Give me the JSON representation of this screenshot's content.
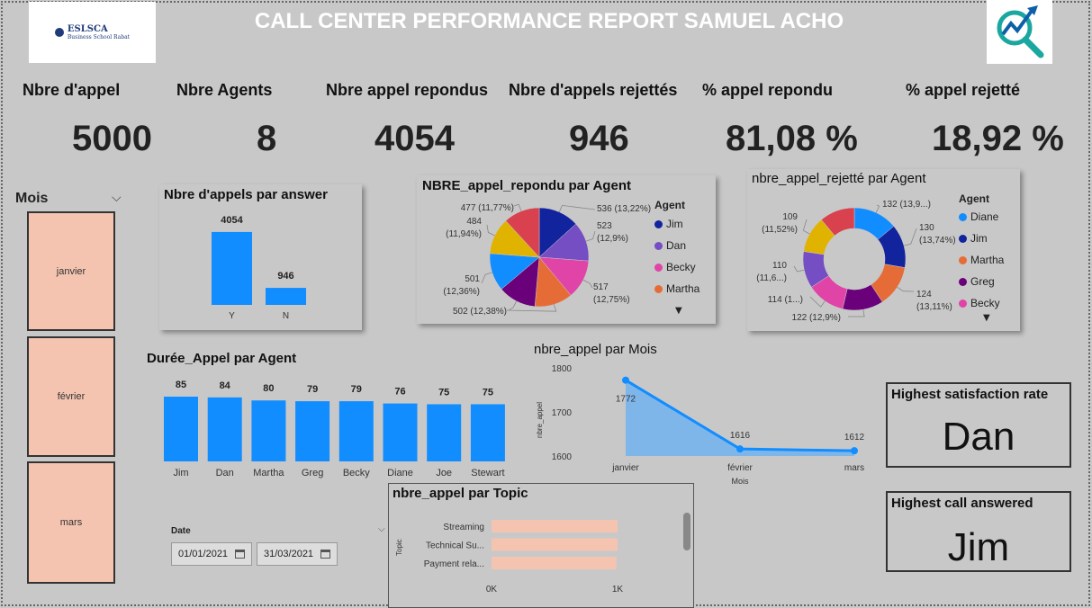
{
  "header": {
    "title": "CALL CENTER PERFORMANCE REPORT SAMUEL ACHO",
    "logo_left": {
      "name": "ESLSCA",
      "sub": "Business School Rabat"
    },
    "logo_right_icon": "analytics-magnifier-icon"
  },
  "kpis": [
    {
      "label": "Nbre d'appel",
      "value": "5000"
    },
    {
      "label": "Nbre Agents",
      "value": "8"
    },
    {
      "label": "Nbre appel repondus",
      "value": "4054"
    },
    {
      "label": "Nbre d'appels rejettés",
      "value": "946"
    },
    {
      "label": "% appel repondu",
      "value": "81,08 %"
    },
    {
      "label": "% appel rejetté",
      "value": "18,92 %"
    }
  ],
  "slicer": {
    "label": "Mois",
    "items": [
      "janvier",
      "février",
      "mars"
    ]
  },
  "date_filter": {
    "label": "Date",
    "start": "01/01/2021",
    "end": "31/03/2021"
  },
  "cards": {
    "satisfaction": {
      "title": "Highest satisfaction rate",
      "value": "Dan"
    },
    "answered": {
      "title": "Highest call answered",
      "value": "Jim"
    }
  },
  "colors": {
    "bar": "#118dff",
    "slicer": "#f4c4b0",
    "topic_bar": "#f4c4b0"
  },
  "chart_data": [
    {
      "id": "answer",
      "type": "bar",
      "title": "Nbre d'appels par answer",
      "categories": [
        "Y",
        "N"
      ],
      "values": [
        4054,
        946
      ],
      "ylim": [
        0,
        4500
      ]
    },
    {
      "id": "answered-pie",
      "type": "pie",
      "title": "NBRE_appel_repondu par Agent",
      "legend_title": "Agent",
      "legend": [
        "Jim",
        "Dan",
        "Becky",
        "Martha"
      ],
      "slices": [
        {
          "name": "Jim",
          "value": 536,
          "label": "536 (13,22%)",
          "color": "#12239e"
        },
        {
          "name": "Dan",
          "value": 523,
          "label": "523 (12,9%)",
          "color": "#744ec2"
        },
        {
          "name": "Becky",
          "value": 517,
          "label": "517 (12,75%)",
          "color": "#e044a7"
        },
        {
          "name": "Martha",
          "value": 502,
          "label": "(12,38%)",
          "color": "#e66c37"
        },
        {
          "name": "Greg",
          "value": 502,
          "label": "502 (12,38%)",
          "color": "#6b007b"
        },
        {
          "name": "Diane",
          "value": 501,
          "label": "501 (12,36%)",
          "color": "#118dff"
        },
        {
          "name": "Joe",
          "value": 484,
          "label": "484 (11,94%)",
          "color": "#e0b300"
        },
        {
          "name": "Stewart",
          "value": 477,
          "label": "477 (11,77%)",
          "color": "#d9414e"
        }
      ]
    },
    {
      "id": "rejected-donut",
      "type": "pie",
      "title": "nbre_appel_rejetté par Agent",
      "legend_title": "Agent",
      "legend": [
        "Diane",
        "Jim",
        "Martha",
        "Greg",
        "Becky"
      ],
      "slices": [
        {
          "name": "Diane",
          "value": 132,
          "label": "132 (13,9...)",
          "color": "#118dff"
        },
        {
          "name": "Jim",
          "value": 130,
          "label": "130 (13,74%)",
          "color": "#12239e"
        },
        {
          "name": "Martha",
          "value": 124,
          "label": "124 (13,11%)",
          "color": "#e66c37"
        },
        {
          "name": "Greg",
          "value": 122,
          "label": "122 (12,9%)",
          "color": "#6b007b"
        },
        {
          "name": "Becky",
          "value": 114,
          "label": "114 (1...)",
          "color": "#e044a7"
        },
        {
          "name": "Dan",
          "value": 110,
          "label": "110 (11,6...)",
          "color": "#744ec2"
        },
        {
          "name": "Joe",
          "value": 109,
          "label": "109 (11,52%)",
          "color": "#e0b300"
        },
        {
          "name": "Stewart",
          "value": 105,
          "label": "",
          "color": "#d9414e"
        }
      ]
    },
    {
      "id": "duree",
      "type": "bar",
      "title": "Durée_Appel par Agent",
      "categories": [
        "Jim",
        "Dan",
        "Martha",
        "Greg",
        "Becky",
        "Diane",
        "Joe",
        "Stewart"
      ],
      "values": [
        85,
        84,
        80,
        79,
        79,
        76,
        75,
        75
      ],
      "ylim": [
        0,
        85
      ]
    },
    {
      "id": "mois",
      "type": "area",
      "title": "nbre_appel par Mois",
      "x": [
        "janvier",
        "février",
        "mars"
      ],
      "values": [
        1772,
        1616,
        1612
      ],
      "xlabel": "Mois",
      "ylabel": "nbre_appel",
      "yticks": [
        1800,
        1700,
        1600
      ],
      "ylim": [
        1600,
        1800
      ]
    },
    {
      "id": "topic",
      "type": "bar",
      "title": "nbre_appel par Topic",
      "categories": [
        "Streaming",
        "Technical Su...",
        "Payment rela..."
      ],
      "values": [
        1000,
        1000,
        990
      ],
      "ylabel": "Topic",
      "xticks": [
        "0K",
        "1K"
      ],
      "xlim": [
        0,
        1000
      ]
    }
  ]
}
